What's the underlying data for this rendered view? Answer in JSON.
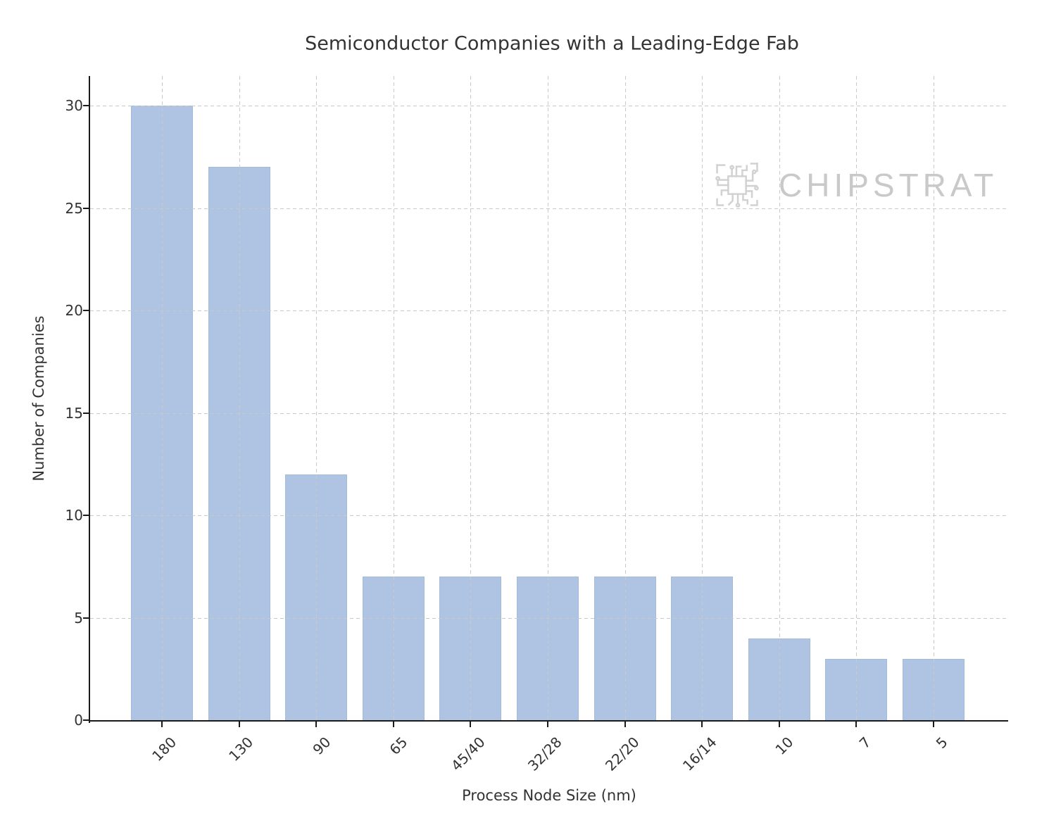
{
  "chart_data": {
    "type": "bar",
    "title": "Semiconductor Companies with a Leading-Edge Fab",
    "categories": [
      "180",
      "130",
      "90",
      "65",
      "45/40",
      "32/28",
      "22/20",
      "16/14",
      "10",
      "7",
      "5"
    ],
    "values": [
      30,
      27,
      12,
      7,
      7,
      7,
      7,
      7,
      4,
      3,
      3
    ],
    "xlabel": "Process Node Size (nm)",
    "ylabel": "Number of Companies",
    "ylim": [
      0,
      31.5
    ],
    "yticks": [
      0,
      5,
      10,
      15,
      20,
      25,
      30
    ],
    "grid": "dashed-both-axes",
    "legend": false,
    "watermark": "CHIPSTRAT"
  },
  "chart_style": {
    "bar_fill": "#aec4e2",
    "bar_edge": "#a2bbda",
    "grid_color": "#c9c9c9",
    "axis_color": "#1a1a1a",
    "text_color": "#333333",
    "watermark_color": "#c9c9c9",
    "background": "#ffffff"
  }
}
